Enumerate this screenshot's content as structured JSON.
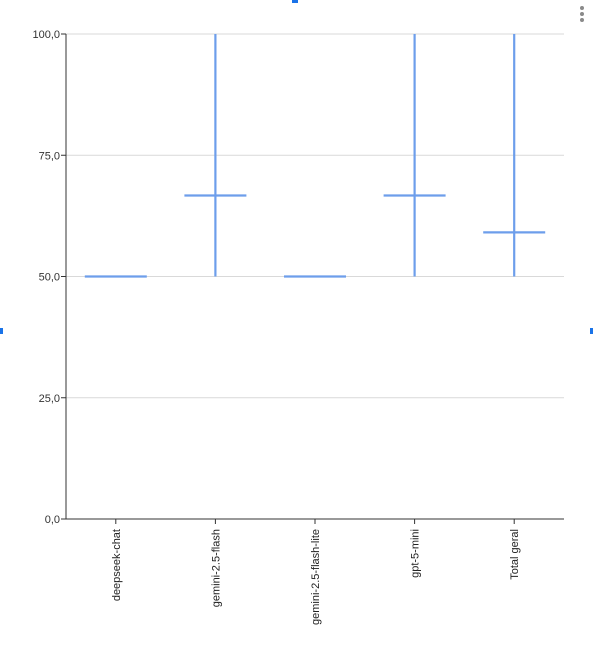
{
  "chart_data": {
    "type": "candlestick",
    "categories": [
      "deepseek-chat",
      "gemini-2.5-flash",
      "gemini-2.5-flash-lite",
      "gpt-5-mini",
      "Total geral"
    ],
    "series": [
      {
        "low": [
          50,
          50,
          50,
          50,
          50
        ],
        "mid": [
          50,
          66.7,
          50,
          66.7,
          59.1
        ],
        "high": [
          50,
          100,
          50,
          100,
          100
        ]
      }
    ],
    "ylim": [
      0,
      100
    ],
    "yticks": [
      {
        "value": 0,
        "label": "0,0"
      },
      {
        "value": 25,
        "label": "25,0"
      },
      {
        "value": 50,
        "label": "50,0"
      },
      {
        "value": 75,
        "label": "75,0"
      },
      {
        "value": 100,
        "label": "100,0"
      }
    ],
    "grid": true,
    "colors": {
      "series": "#6d9eeb",
      "grid": "#d9d9d9",
      "axis": "#333333"
    }
  },
  "icons": {
    "menu": "more-vert-icon"
  }
}
